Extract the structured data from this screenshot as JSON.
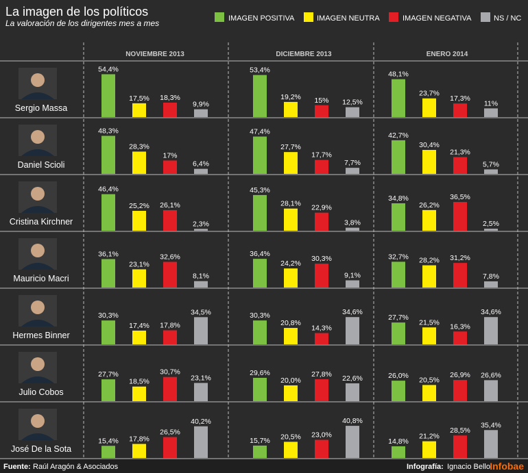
{
  "header": {
    "title": "La imagen de los políticos",
    "subtitle": "La valoración de los dirigentes mes a mes"
  },
  "legend": [
    {
      "label": "IMAGEN POSITIVA",
      "color": "#7dc142"
    },
    {
      "label": "IMAGEN NEUTRA",
      "color": "#ffec00"
    },
    {
      "label": "IMAGEN NEGATIVA",
      "color": "#e31e24"
    },
    {
      "label": "NS / NC",
      "color": "#a7a9ac"
    }
  ],
  "footer": {
    "source_label": "Fuente:",
    "source": "Raúl Aragón & Asociados",
    "credit_label": "Infografía:",
    "credit": "Ignacio Bello",
    "brand": "Infobae"
  },
  "chart_data": {
    "type": "bar",
    "months": [
      "NOVIEMBRE 2013",
      "DICIEMBRE 2013",
      "ENERO 2014"
    ],
    "series_names": [
      "IMAGEN POSITIVA",
      "IMAGEN NEUTRA",
      "IMAGEN NEGATIVA",
      "NS / NC"
    ],
    "colors": [
      "#7dc142",
      "#ffec00",
      "#e31e24",
      "#a7a9ac"
    ],
    "politicians": [
      {
        "name": "Sergio Massa",
        "values": [
          [
            54.4,
            17.5,
            18.3,
            9.9
          ],
          [
            53.4,
            19.2,
            15,
            12.5
          ],
          [
            48.1,
            23.7,
            17.3,
            11
          ]
        ],
        "labels": [
          [
            "54,4%",
            "17,5%",
            "18,3%",
            "9,9%"
          ],
          [
            "53,4%",
            "19,2%",
            "15%",
            "12,5%"
          ],
          [
            "48,1%",
            "23,7%",
            "17,3%",
            "11%"
          ]
        ]
      },
      {
        "name": "Daniel Scioli",
        "values": [
          [
            48.3,
            28.3,
            17,
            6.4
          ],
          [
            47.4,
            27.7,
            17.7,
            7.7
          ],
          [
            42.7,
            30.4,
            21.3,
            5.7
          ]
        ],
        "labels": [
          [
            "48,3%",
            "28,3%",
            "17%",
            "6,4%"
          ],
          [
            "47,4%",
            "27,7%",
            "17,7%",
            "7,7%"
          ],
          [
            "42,7%",
            "30,4%",
            "21,3%",
            "5,7%"
          ]
        ]
      },
      {
        "name": "Cristina Kirchner",
        "values": [
          [
            46.4,
            25.2,
            26.1,
            2.3
          ],
          [
            45.3,
            28.1,
            22.9,
            3.8
          ],
          [
            34.8,
            26.2,
            36.5,
            2.5
          ]
        ],
        "labels": [
          [
            "46,4%",
            "25,2%",
            "26,1%",
            "2,3%"
          ],
          [
            "45,3%",
            "28,1%",
            "22,9%",
            "3,8%"
          ],
          [
            "34,8%",
            "26,2%",
            "36,5%",
            "2,5%"
          ]
        ]
      },
      {
        "name": "Mauricio Macri",
        "values": [
          [
            36.1,
            23.1,
            32.6,
            8.1
          ],
          [
            36.4,
            24.2,
            30.3,
            9.1
          ],
          [
            32.7,
            28.2,
            31.2,
            7.8
          ]
        ],
        "labels": [
          [
            "36,1%",
            "23,1%",
            "32,6%",
            "8,1%"
          ],
          [
            "36,4%",
            "24,2%",
            "30,3%",
            "9,1%"
          ],
          [
            "32,7%",
            "28,2%",
            "31,2%",
            "7,8%"
          ]
        ]
      },
      {
        "name": "Hermes Binner",
        "values": [
          [
            30.3,
            17.4,
            17.8,
            34.5
          ],
          [
            30.3,
            20.8,
            14.3,
            34.6
          ],
          [
            27.7,
            21.5,
            16.3,
            34.6
          ]
        ],
        "labels": [
          [
            "30,3%",
            "17,4%",
            "17,8%",
            "34,5%"
          ],
          [
            "30,3%",
            "20,8%",
            "14,3%",
            "34,6%"
          ],
          [
            "27,7%",
            "21,5%",
            "16,3%",
            "34,6%"
          ]
        ]
      },
      {
        "name": "Julio Cobos",
        "values": [
          [
            27.7,
            18.5,
            30.7,
            23.1
          ],
          [
            29.6,
            20.0,
            27.8,
            22.6
          ],
          [
            26.0,
            20.5,
            26.9,
            26.6
          ]
        ],
        "labels": [
          [
            "27,7%",
            "18,5%",
            "30,7%",
            "23,1%"
          ],
          [
            "29,6%",
            "20,0%",
            "27,8%",
            "22,6%"
          ],
          [
            "26,0%",
            "20,5%",
            "26,9%",
            "26,6%"
          ]
        ]
      },
      {
        "name": "José De la Sota",
        "values": [
          [
            15.4,
            17.8,
            26.5,
            40.2
          ],
          [
            15.7,
            20.5,
            23.0,
            40.8
          ],
          [
            14.8,
            21.2,
            28.5,
            35.4
          ]
        ],
        "labels": [
          [
            "15,4%",
            "17,8%",
            "26,5%",
            "40,2%"
          ],
          [
            "15,7%",
            "20,5%",
            "23,0%",
            "40,8%"
          ],
          [
            "14,8%",
            "21,2%",
            "28,5%",
            "35,4%"
          ]
        ]
      }
    ]
  }
}
